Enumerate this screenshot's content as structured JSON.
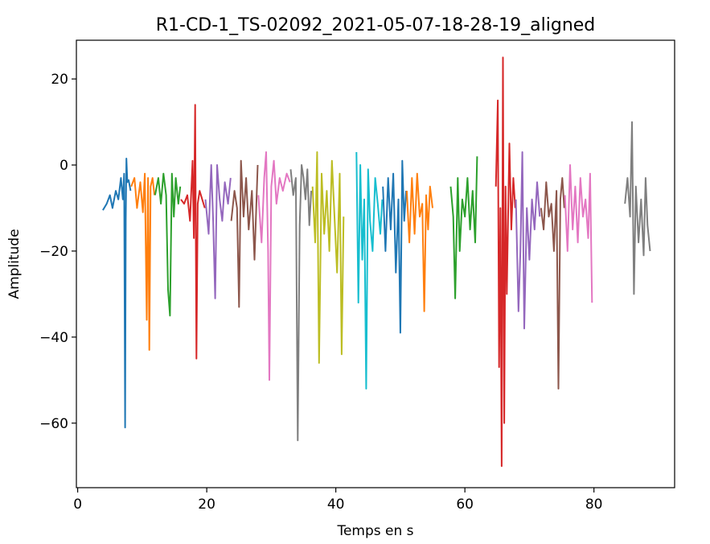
{
  "chart_data": {
    "type": "line",
    "title": "R1-CD-1_TS-02092_2021-05-07-18-28-19_aligned",
    "xlabel": "Temps en s",
    "ylabel": "Amplitude",
    "xlim": [
      -0.2,
      92.5
    ],
    "ylim": [
      -75,
      29
    ],
    "xticks": [
      0,
      20,
      40,
      60,
      80
    ],
    "yticks": [
      20,
      0,
      -20,
      -40,
      -60
    ],
    "xtick_labels": [
      "0",
      "20",
      "40",
      "60",
      "80"
    ],
    "ytick_labels": [
      "20",
      "0",
      "−20",
      "−40",
      "−60"
    ],
    "grid": false,
    "legend": "none",
    "series": [
      {
        "color": "#1f77b4",
        "x": [
          3.9,
          4.5,
          5.0,
          5.4,
          5.9,
          6.3,
          6.7,
          7.0,
          7.2,
          7.35,
          7.45,
          7.55,
          7.7,
          7.9,
          8.2
        ],
        "y": [
          -10.5,
          -9,
          -7,
          -10,
          -6,
          -8,
          -3,
          -8,
          -2,
          -61,
          -13,
          1.5,
          -4,
          -3.5,
          -6
        ]
      },
      {
        "color": "#ff7f0e",
        "x": [
          8.3,
          8.8,
          9.2,
          9.7,
          10.1,
          10.4,
          10.7,
          10.9,
          11.1,
          11.3,
          11.6,
          11.9
        ],
        "y": [
          -5,
          -3,
          -10,
          -4,
          -11,
          -2,
          -36,
          -3,
          -43,
          -5,
          -3,
          -7
        ]
      },
      {
        "color": "#2ca02c",
        "x": [
          12.0,
          12.5,
          12.9,
          13.3,
          13.7,
          14.0,
          14.3,
          14.6,
          14.9,
          15.2,
          15.6,
          15.9
        ],
        "y": [
          -7,
          -3,
          -9,
          -2,
          -7,
          -29,
          -35,
          -2,
          -12,
          -3,
          -9,
          -5
        ]
      },
      {
        "color": "#d62728",
        "x": [
          16.0,
          16.5,
          17.0,
          17.4,
          17.8,
          18.0,
          18.2,
          18.4,
          18.6,
          18.9,
          19.3,
          19.7
        ],
        "y": [
          -8,
          -9,
          -7,
          -13,
          1,
          -17,
          14,
          -45,
          -9,
          -6,
          -8,
          -10
        ]
      },
      {
        "color": "#9467bd",
        "x": [
          19.8,
          20.3,
          20.7,
          21.0,
          21.3,
          21.6,
          22.0,
          22.4,
          22.8,
          23.3,
          23.7
        ],
        "y": [
          -8,
          -16,
          0,
          -13,
          -31,
          0,
          -8,
          -13,
          -4,
          -9,
          -3
        ]
      },
      {
        "color": "#8c564b",
        "x": [
          23.8,
          24.3,
          24.7,
          25.0,
          25.3,
          25.7,
          26.1,
          26.5,
          27.0,
          27.4,
          27.9
        ],
        "y": [
          -13,
          -6,
          -10,
          -33,
          1,
          -12,
          -3,
          -15,
          -6,
          -22,
          0
        ]
      },
      {
        "color": "#e377c2",
        "x": [
          28.0,
          28.5,
          28.9,
          29.2,
          29.5,
          29.7,
          30.0,
          30.4,
          30.8,
          31.3,
          31.8,
          32.4,
          32.9
        ],
        "y": [
          -7,
          -18,
          -3,
          3,
          -20,
          -50,
          -5,
          1,
          -9,
          -3,
          -6,
          -2,
          -4
        ]
      },
      {
        "color": "#7f7f7f",
        "x": [
          33.0,
          33.4,
          33.8,
          34.1,
          34.4,
          34.7,
          35.0,
          35.3,
          35.6,
          35.9,
          36.2
        ],
        "y": [
          -1,
          -7,
          -3,
          -64,
          -14,
          0,
          -3,
          -8,
          -1,
          -14,
          -6
        ]
      },
      {
        "color": "#bcbd22",
        "x": [
          36.4,
          36.8,
          37.1,
          37.4,
          37.8,
          38.2,
          38.6,
          39.0,
          39.4,
          39.8,
          40.2,
          40.6,
          40.9,
          41.2
        ],
        "y": [
          -5,
          -18,
          3,
          -46,
          -2,
          -16,
          -6,
          -20,
          1,
          -12,
          -25,
          -2,
          -44,
          -12
        ]
      },
      {
        "color": "#17becf",
        "x": [
          43.2,
          43.5,
          43.8,
          44.1,
          44.4,
          44.7,
          45.0,
          45.3,
          45.7,
          46.1,
          46.5,
          46.9,
          47.2
        ],
        "y": [
          3,
          -32,
          0,
          -22,
          -8,
          -52,
          -1,
          -13,
          -20,
          -3,
          -9,
          -16,
          -8
        ]
      },
      {
        "color": "#1f77b4",
        "x": [
          47.3,
          47.7,
          48.1,
          48.5,
          48.9,
          49.3,
          49.7,
          50.0,
          50.3,
          50.6,
          50.9
        ],
        "y": [
          -5,
          -20,
          -3,
          -15,
          -2,
          -25,
          -8,
          -39,
          1,
          -13,
          -6
        ]
      },
      {
        "color": "#ff7f0e",
        "x": [
          51.0,
          51.4,
          51.8,
          52.2,
          52.6,
          53.0,
          53.4,
          53.7,
          54.0,
          54.3,
          54.6,
          55.0
        ],
        "y": [
          -6,
          -18,
          -3,
          -16,
          -2,
          -12,
          -9,
          -34,
          -7,
          -15,
          -5,
          -10
        ]
      },
      {
        "color": "#2ca02c",
        "x": [
          57.8,
          58.2,
          58.5,
          58.9,
          59.2,
          59.6,
          60.0,
          60.4,
          60.8,
          61.2,
          61.6,
          61.9
        ],
        "y": [
          -5,
          -12,
          -31,
          -3,
          -20,
          -8,
          -12,
          -3,
          -15,
          -6,
          -18,
          2
        ]
      },
      {
        "color": "#d62728",
        "x": [
          64.8,
          65.1,
          65.3,
          65.5,
          65.7,
          65.9,
          66.1,
          66.3,
          66.5,
          66.7,
          66.9,
          67.2,
          67.5,
          67.8
        ],
        "y": [
          -5,
          15,
          -47,
          -10,
          -70,
          25,
          -60,
          -5,
          -30,
          -12,
          5,
          -15,
          -3,
          -10
        ]
      },
      {
        "color": "#9467bd",
        "x": [
          67.9,
          68.3,
          68.6,
          68.9,
          69.2,
          69.6,
          70.0,
          70.4,
          70.8,
          71.2,
          71.6
        ],
        "y": [
          -8,
          -34,
          -20,
          3,
          -38,
          -10,
          -22,
          -8,
          -15,
          -4,
          -12
        ]
      },
      {
        "color": "#8c564b",
        "x": [
          71.8,
          72.2,
          72.6,
          73.0,
          73.4,
          73.8,
          74.2,
          74.5,
          74.8,
          75.1,
          75.4
        ],
        "y": [
          -10,
          -15,
          -4,
          -12,
          -9,
          -20,
          -6,
          -52,
          -8,
          -3,
          -10
        ]
      },
      {
        "color": "#e377c2",
        "x": [
          75.5,
          75.9,
          76.3,
          76.7,
          77.1,
          77.5,
          77.9,
          78.3,
          78.7,
          79.1,
          79.4,
          79.7
        ],
        "y": [
          -7,
          -20,
          0,
          -15,
          -5,
          -18,
          -3,
          -12,
          -8,
          -17,
          -2,
          -32
        ]
      },
      {
        "color": "#7f7f7f",
        "x": [
          84.8,
          85.2,
          85.6,
          85.9,
          86.2,
          86.5,
          86.9,
          87.3,
          87.7,
          88.0,
          88.3,
          88.7
        ],
        "y": [
          -9,
          -3,
          -12,
          10,
          -30,
          -5,
          -18,
          -8,
          -21,
          -3,
          -14,
          -20
        ]
      }
    ]
  }
}
